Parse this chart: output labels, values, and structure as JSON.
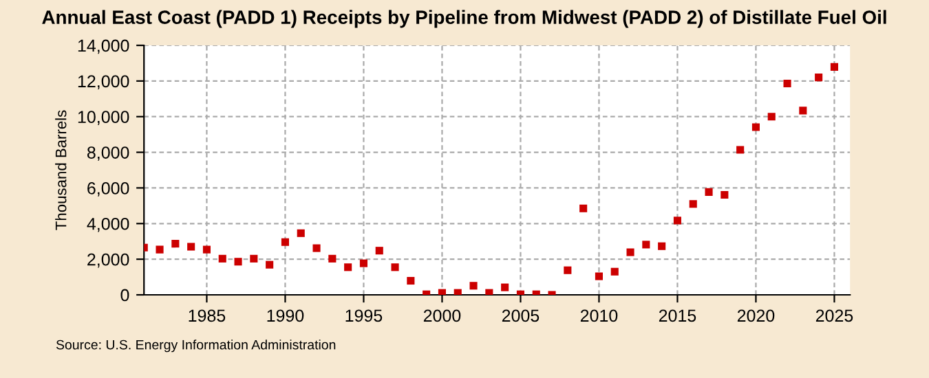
{
  "chart_data": {
    "type": "scatter",
    "title": "Annual East Coast (PADD 1) Receipts by Pipeline from Midwest (PADD 2) of Distillate Fuel Oil",
    "ylabel": "Thousand Barrels",
    "annotations": [
      "Source: U.S. Energy Information Administration"
    ],
    "x": [
      1981,
      1982,
      1983,
      1984,
      1985,
      1986,
      1987,
      1988,
      1989,
      1990,
      1991,
      1992,
      1993,
      1994,
      1995,
      1996,
      1997,
      1998,
      1999,
      2000,
      2001,
      2002,
      2003,
      2004,
      2005,
      2006,
      2007,
      2008,
      2009,
      2010,
      2011,
      2012,
      2013,
      2014,
      2015,
      2016,
      2017,
      2018,
      2019,
      2020,
      2021,
      2022,
      2023,
      2024,
      2025
    ],
    "series": [
      {
        "color": "#cc0000",
        "values": [
          2650,
          2540,
          2870,
          2700,
          2540,
          2030,
          1860,
          2030,
          1690,
          2960,
          3460,
          2620,
          2030,
          1550,
          1770,
          2480,
          1550,
          790,
          30,
          110,
          110,
          510,
          110,
          420,
          30,
          30,
          0,
          1380,
          4850,
          1040,
          1300,
          2390,
          2820,
          2730,
          4170,
          5100,
          5770,
          5610,
          8140,
          9410,
          10000,
          11860,
          10340,
          12200,
          12790
        ]
      }
    ],
    "xlim": [
      1981,
      2026
    ],
    "xticks": [
      1985,
      1990,
      1995,
      2000,
      2005,
      2010,
      2015,
      2020,
      2025
    ],
    "ylim": [
      0,
      14000
    ],
    "yticks": [
      {
        "value": 0,
        "label": "0"
      },
      {
        "value": 2000,
        "label": "2,000"
      },
      {
        "value": 4000,
        "label": "4,000"
      },
      {
        "value": 6000,
        "label": "6,000"
      },
      {
        "value": 8000,
        "label": "8,000"
      },
      {
        "value": 10000,
        "label": "10,000"
      },
      {
        "value": 12000,
        "label": "12,000"
      },
      {
        "value": 14000,
        "label": "14,000"
      }
    ],
    "grid": true,
    "marker": "square"
  }
}
